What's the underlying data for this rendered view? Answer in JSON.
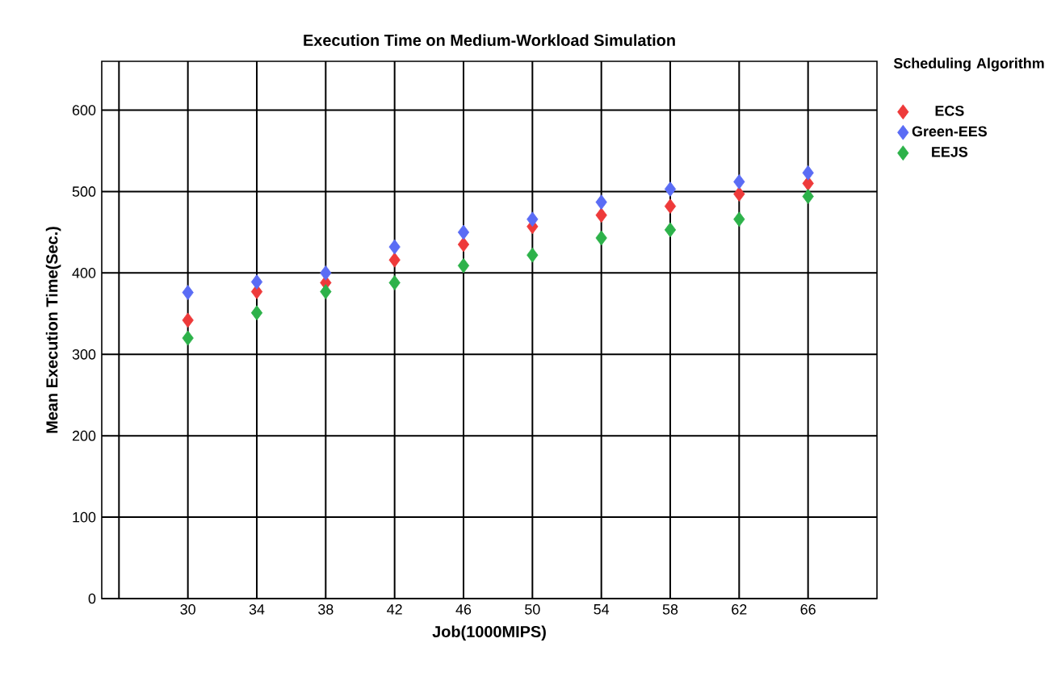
{
  "chart_data": {
    "type": "scatter",
    "title": "Execution Time on Medium-Workload Simulation",
    "xlabel": "Job(1000MIPS)",
    "ylabel": "Mean Execution Time(Sec.)",
    "legend_title": "Scheduling Algorithm",
    "x": [
      30,
      34,
      38,
      42,
      46,
      50,
      54,
      58,
      62,
      66
    ],
    "series": [
      {
        "name": "ECS",
        "color": "#ee3a3a",
        "values": [
          342,
          377,
          388,
          416,
          435,
          457,
          471,
          482,
          497,
          510
        ]
      },
      {
        "name": "Green-EES",
        "color": "#5a6cf5",
        "values": [
          376,
          389,
          400,
          432,
          450,
          466,
          487,
          503,
          512,
          523
        ]
      },
      {
        "name": "EEJS",
        "color": "#2db24a",
        "values": [
          320,
          351,
          377,
          388,
          409,
          422,
          443,
          453,
          466,
          494
        ]
      }
    ],
    "xlim": [
      25,
      70
    ],
    "xticks": [
      {
        "value": 26,
        "label": null
      },
      30,
      34,
      38,
      42,
      46,
      50,
      54,
      58,
      62,
      66
    ],
    "ylim": [
      0,
      660
    ],
    "yticks": [
      0,
      100,
      200,
      300,
      400,
      500,
      600
    ],
    "grid": true,
    "legend": "right",
    "marker": "diamond"
  }
}
